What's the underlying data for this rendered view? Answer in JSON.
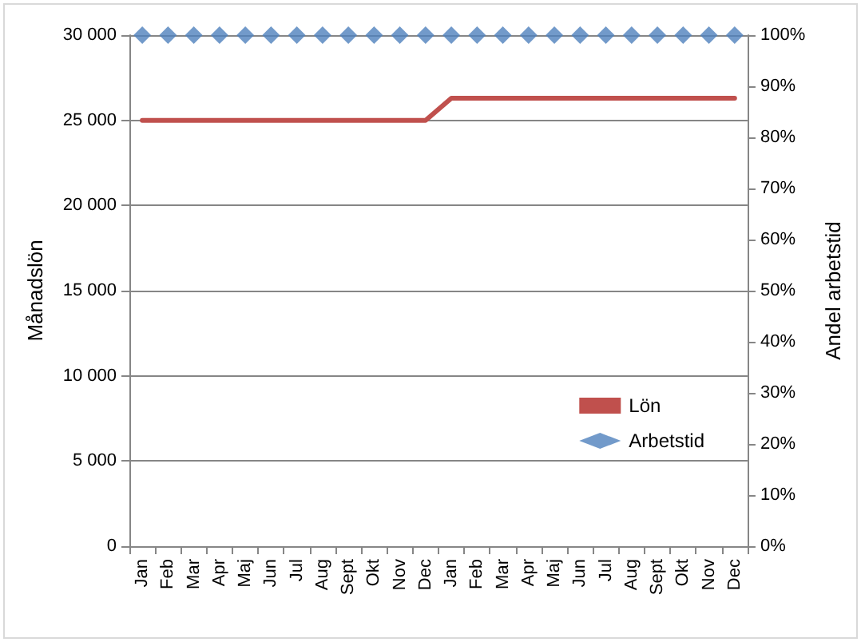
{
  "chart_data": {
    "type": "line",
    "ylabel": "Månadslön",
    "y2label": "Andel arbetstid",
    "categories": [
      "Jan",
      "Feb",
      "Mar",
      "Apr",
      "Maj",
      "Jun",
      "Jul",
      "Aug",
      "Sept",
      "Okt",
      "Nov",
      "Dec",
      "Jan",
      "Feb",
      "Mar",
      "Apr",
      "Maj",
      "Jun",
      "Jul",
      "Aug",
      "Sept",
      "Okt",
      "Nov",
      "Dec"
    ],
    "series": [
      {
        "name": "Lön",
        "marker": "none",
        "color": "#c0504d",
        "values": [
          25000,
          25000,
          25000,
          25000,
          25000,
          25000,
          25000,
          25000,
          25000,
          25000,
          25000,
          25000,
          26300,
          26300,
          26300,
          26300,
          26300,
          26300,
          26300,
          26300,
          26300,
          26300,
          26300,
          26300
        ]
      },
      {
        "name": "Arbetstid",
        "type": "scatter",
        "marker": "diamond",
        "axis": "y2",
        "color": "#4f81bd",
        "values": [
          100,
          100,
          100,
          100,
          100,
          100,
          100,
          100,
          100,
          100,
          100,
          100,
          100,
          100,
          100,
          100,
          100,
          100,
          100,
          100,
          100,
          100,
          100,
          100
        ]
      }
    ],
    "ylim": [
      0,
      30000
    ],
    "yticks": [
      {
        "value": 0,
        "label": "0"
      },
      {
        "value": 5000,
        "label": "5 000"
      },
      {
        "value": 10000,
        "label": "10 000"
      },
      {
        "value": 15000,
        "label": "15 000"
      },
      {
        "value": 20000,
        "label": "20 000"
      },
      {
        "value": 25000,
        "label": "25 000"
      },
      {
        "value": 30000,
        "label": "30 000"
      }
    ],
    "y2lim": [
      0,
      100
    ],
    "y2ticks": [
      {
        "value": 0,
        "label": "0%"
      },
      {
        "value": 10,
        "label": "10%"
      },
      {
        "value": 20,
        "label": "20%"
      },
      {
        "value": 30,
        "label": "30%"
      },
      {
        "value": 40,
        "label": "40%"
      },
      {
        "value": 50,
        "label": "50%"
      },
      {
        "value": 60,
        "label": "60%"
      },
      {
        "value": 70,
        "label": "70%"
      },
      {
        "value": 80,
        "label": "80%"
      },
      {
        "value": 90,
        "label": "90%"
      },
      {
        "value": 100,
        "label": "100%"
      }
    ],
    "grid": "y",
    "legend": "right"
  }
}
